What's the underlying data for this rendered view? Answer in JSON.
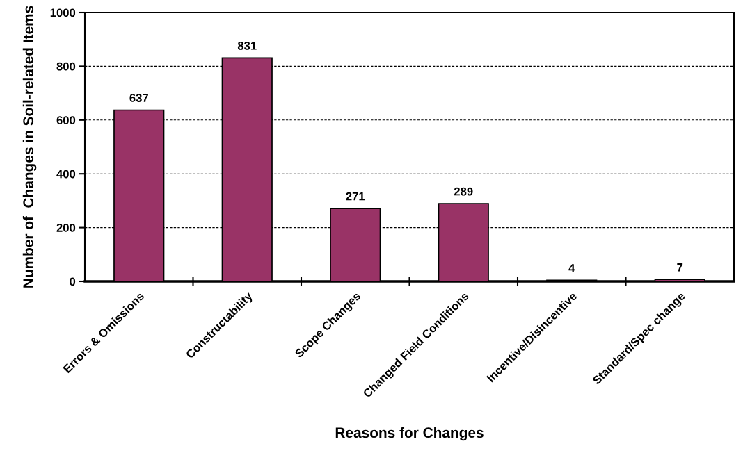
{
  "chart_data": {
    "type": "bar",
    "xlabel": "Reasons for Changes",
    "ylabel": "Number of  Changes in Soil-related Items",
    "categories": [
      "Errors & Omissions",
      "Constructability",
      "Scope Changes",
      "Changed Field Conditions",
      "Incentive/Disincentive",
      "Standard/Spec change"
    ],
    "values": [
      637,
      831,
      271,
      289,
      4,
      7
    ],
    "color": "#993366",
    "data_labels": true,
    "ylim": [
      0,
      1000
    ],
    "yticks": [
      0,
      200,
      400,
      600,
      800,
      1000
    ],
    "grid": "y"
  }
}
